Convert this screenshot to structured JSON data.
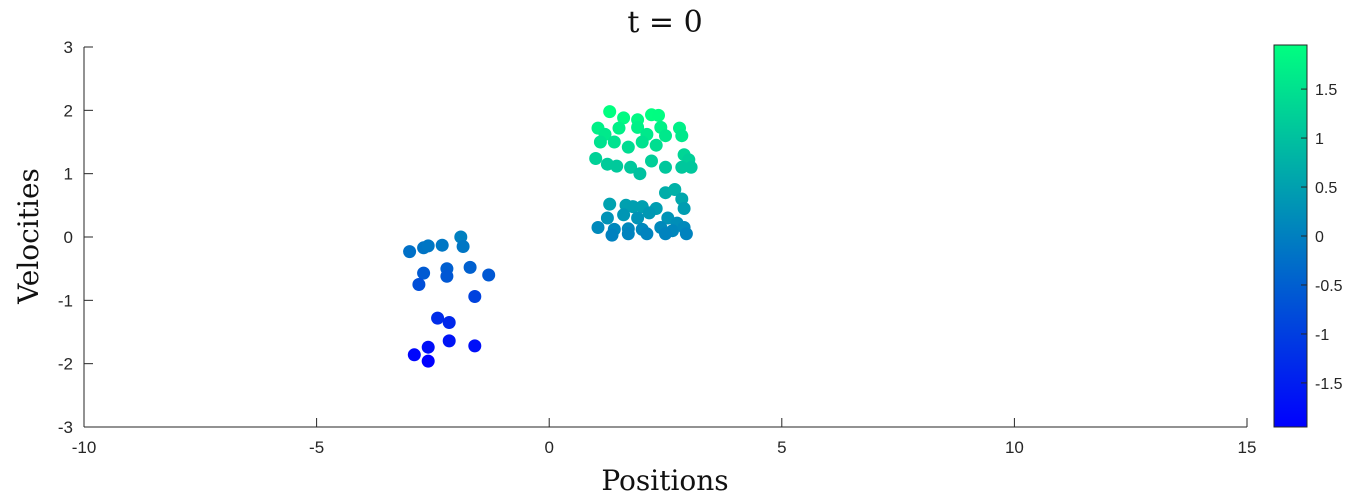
{
  "chart_data": {
    "type": "scatter",
    "title": "t = 0",
    "xlabel": "Positions",
    "ylabel": "Velocities",
    "xlim": [
      -10,
      15
    ],
    "ylim": [
      -3,
      3
    ],
    "x_ticks": [
      -10,
      -5,
      0,
      5,
      10,
      15
    ],
    "y_ticks": [
      -3,
      -2,
      -1,
      0,
      1,
      2,
      3
    ],
    "grid": false,
    "colormap": "winter",
    "color_stops": [
      "#0000ff",
      "#00ff80"
    ],
    "colorbar": {
      "range": [
        -1.95,
        1.95
      ],
      "ticks": [
        -1.5,
        -1,
        -0.5,
        0,
        0.5,
        1,
        1.5
      ],
      "tick_labels": [
        "-1.5",
        "-1",
        "-0.5",
        "0",
        "0.5",
        "1",
        "1.5"
      ]
    },
    "points": [
      [
        -3.0,
        -0.23
      ],
      [
        -2.7,
        -0.17
      ],
      [
        -2.6,
        -0.14
      ],
      [
        -2.3,
        -0.13
      ],
      [
        -1.9,
        0.0
      ],
      [
        -1.85,
        -0.15
      ],
      [
        -2.7,
        -0.57
      ],
      [
        -2.8,
        -0.75
      ],
      [
        -2.2,
        -0.5
      ],
      [
        -2.2,
        -0.62
      ],
      [
        -1.7,
        -0.48
      ],
      [
        -1.3,
        -0.6
      ],
      [
        -1.6,
        -0.94
      ],
      [
        -2.4,
        -1.28
      ],
      [
        -2.15,
        -1.35
      ],
      [
        -2.15,
        -1.64
      ],
      [
        -1.6,
        -1.72
      ],
      [
        -2.6,
        -1.74
      ],
      [
        -2.9,
        -1.86
      ],
      [
        -2.6,
        -1.96
      ],
      [
        1.3,
        1.98
      ],
      [
        1.6,
        1.88
      ],
      [
        2.2,
        1.93
      ],
      [
        2.35,
        1.92
      ],
      [
        1.9,
        1.85
      ],
      [
        1.05,
        1.72
      ],
      [
        1.5,
        1.72
      ],
      [
        1.9,
        1.73
      ],
      [
        2.4,
        1.73
      ],
      [
        2.8,
        1.72
      ],
      [
        1.2,
        1.62
      ],
      [
        2.1,
        1.62
      ],
      [
        2.5,
        1.6
      ],
      [
        2.85,
        1.6
      ],
      [
        1.1,
        1.5
      ],
      [
        1.4,
        1.5
      ],
      [
        1.7,
        1.42
      ],
      [
        2.0,
        1.5
      ],
      [
        2.3,
        1.45
      ],
      [
        2.9,
        1.3
      ],
      [
        3.0,
        1.22
      ],
      [
        1.0,
        1.24
      ],
      [
        1.25,
        1.15
      ],
      [
        1.45,
        1.12
      ],
      [
        1.75,
        1.1
      ],
      [
        1.95,
        1.0
      ],
      [
        2.2,
        1.2
      ],
      [
        2.5,
        1.1
      ],
      [
        2.85,
        1.1
      ],
      [
        3.05,
        1.1
      ],
      [
        2.5,
        0.7
      ],
      [
        2.7,
        0.75
      ],
      [
        2.85,
        0.6
      ],
      [
        2.9,
        0.45
      ],
      [
        1.3,
        0.52
      ],
      [
        1.65,
        0.5
      ],
      [
        1.8,
        0.48
      ],
      [
        2.0,
        0.48
      ],
      [
        2.3,
        0.45
      ],
      [
        1.25,
        0.3
      ],
      [
        1.6,
        0.35
      ],
      [
        1.9,
        0.3
      ],
      [
        2.15,
        0.38
      ],
      [
        2.55,
        0.3
      ],
      [
        2.75,
        0.22
      ],
      [
        1.05,
        0.15
      ],
      [
        1.4,
        0.12
      ],
      [
        1.7,
        0.13
      ],
      [
        2.0,
        0.12
      ],
      [
        2.4,
        0.15
      ],
      [
        2.65,
        0.1
      ],
      [
        2.9,
        0.15
      ],
      [
        1.35,
        0.03
      ],
      [
        1.7,
        0.05
      ],
      [
        2.1,
        0.05
      ],
      [
        2.5,
        0.05
      ],
      [
        2.95,
        0.05
      ]
    ]
  }
}
